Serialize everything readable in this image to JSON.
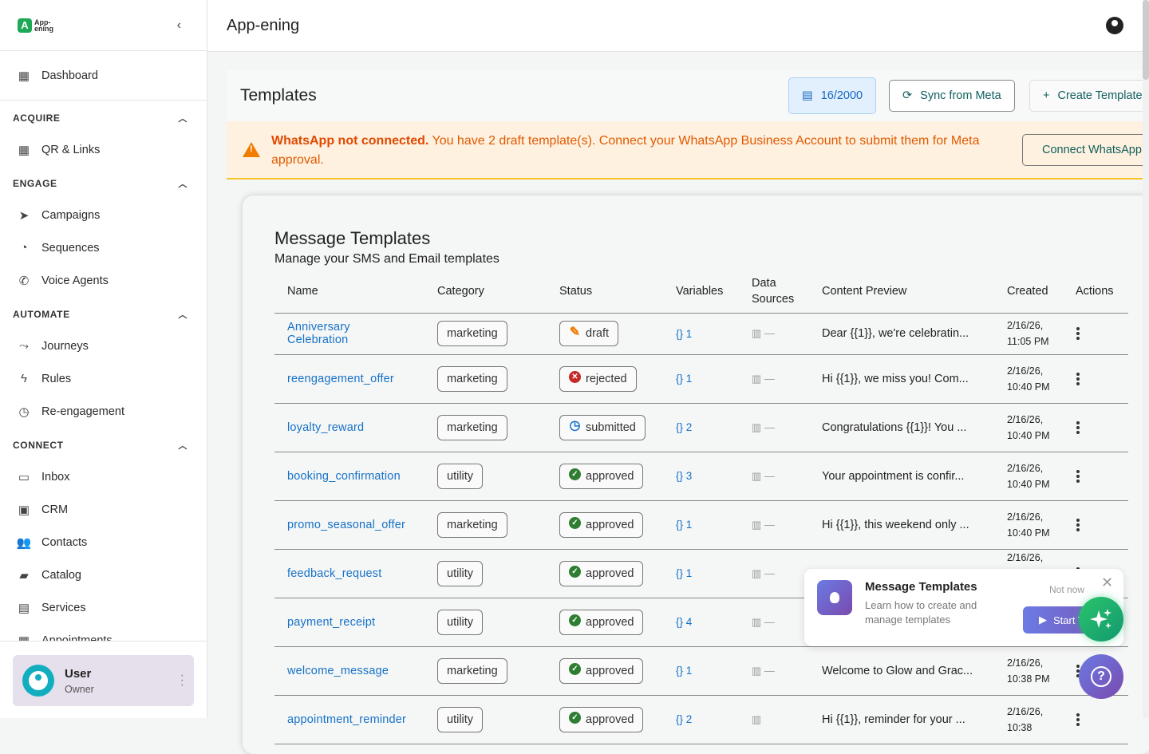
{
  "app": {
    "logo_text": "App-ening",
    "title": "App-ening"
  },
  "sidebar": {
    "dashboard": "Dashboard",
    "sections": [
      {
        "title": "ACQUIRE",
        "items": [
          {
            "label": "QR & Links",
            "icon": "qr-code-icon"
          }
        ]
      },
      {
        "title": "ENGAGE",
        "items": [
          {
            "label": "Campaigns",
            "icon": "send-icon"
          },
          {
            "label": "Sequences",
            "icon": "sequence-icon"
          },
          {
            "label": "Voice Agents",
            "icon": "phone-icon"
          }
        ]
      },
      {
        "title": "AUTOMATE",
        "items": [
          {
            "label": "Journeys",
            "icon": "route-icon"
          },
          {
            "label": "Rules",
            "icon": "bolt-icon"
          },
          {
            "label": "Re-engagement",
            "icon": "clock-icon"
          }
        ]
      },
      {
        "title": "CONNECT",
        "items": [
          {
            "label": "Inbox",
            "icon": "inbox-icon"
          },
          {
            "label": "CRM",
            "icon": "crm-icon"
          },
          {
            "label": "Contacts",
            "icon": "people-icon"
          },
          {
            "label": "Catalog",
            "icon": "bag-icon"
          },
          {
            "label": "Services",
            "icon": "store-icon"
          },
          {
            "label": "Appointments",
            "icon": "calendar-icon"
          }
        ]
      }
    ],
    "user": {
      "name": "User",
      "role": "Owner"
    }
  },
  "templates": {
    "title": "Templates",
    "quota": "16/2000",
    "sync_label": "Sync from Meta",
    "create_label": "Create Template"
  },
  "alert": {
    "strong": "WhatsApp not connected.",
    "text": " You have 2 draft template(s). Connect your WhatsApp Business Account to submit them for Meta approval.",
    "button": "Connect WhatsApp"
  },
  "card": {
    "title": "Message Templates",
    "subtitle": "Manage your SMS and Email templates",
    "columns": [
      "Name",
      "Category",
      "Status",
      "Variables",
      "Data Sources",
      "Content Preview",
      "Created",
      "Actions"
    ],
    "rows": [
      {
        "name": "Anniversary Celebration",
        "category": "marketing",
        "status": "draft",
        "variables": "1",
        "data_sources": "—",
        "preview": "Dear {{1}}, we're celebratin...",
        "created": "2/16/26, 11:05 PM"
      },
      {
        "name": "reengagement_offer",
        "category": "marketing",
        "status": "rejected",
        "variables": "1",
        "data_sources": "—",
        "preview": "Hi {{1}}, we miss you! Com...",
        "created": "2/16/26, 10:40 PM"
      },
      {
        "name": "loyalty_reward",
        "category": "marketing",
        "status": "submitted",
        "variables": "2",
        "data_sources": "—",
        "preview": "Congratulations {{1}}! You ...",
        "created": "2/16/26, 10:40 PM"
      },
      {
        "name": "booking_confirmation",
        "category": "utility",
        "status": "approved",
        "variables": "3",
        "data_sources": "—",
        "preview": "Your appointment is confir...",
        "created": "2/16/26, 10:40 PM"
      },
      {
        "name": "promo_seasonal_offer",
        "category": "marketing",
        "status": "approved",
        "variables": "1",
        "data_sources": "—",
        "preview": "Hi {{1}}, this weekend only ...",
        "created": "2/16/26, 10:40 PM"
      },
      {
        "name": "feedback_request",
        "category": "utility",
        "status": "approved",
        "variables": "1",
        "data_sources": "—",
        "preview": "",
        "created": "2/16/26,"
      },
      {
        "name": "payment_receipt",
        "category": "utility",
        "status": "approved",
        "variables": "4",
        "data_sources": "—",
        "preview": "",
        "created": ""
      },
      {
        "name": "welcome_message",
        "category": "marketing",
        "status": "approved",
        "variables": "1",
        "data_sources": "—",
        "preview": "Welcome to Glow and Grac...",
        "created": "2/16/26, 10:38 PM"
      },
      {
        "name": "appointment_reminder",
        "category": "utility",
        "status": "approved",
        "variables": "2",
        "data_sources": "",
        "preview": "Hi {{1}}, reminder for your ...",
        "created": "2/16/26, 10:38"
      }
    ]
  },
  "tour": {
    "title": "Message Templates",
    "desc": "Learn how to create and manage templates",
    "not_now": "Not now",
    "start": "Start Tour"
  },
  "status_colors": {
    "draft": "#f07c00",
    "rejected": "#c62828",
    "submitted": "#1672c8",
    "approved": "#2e7d32"
  }
}
